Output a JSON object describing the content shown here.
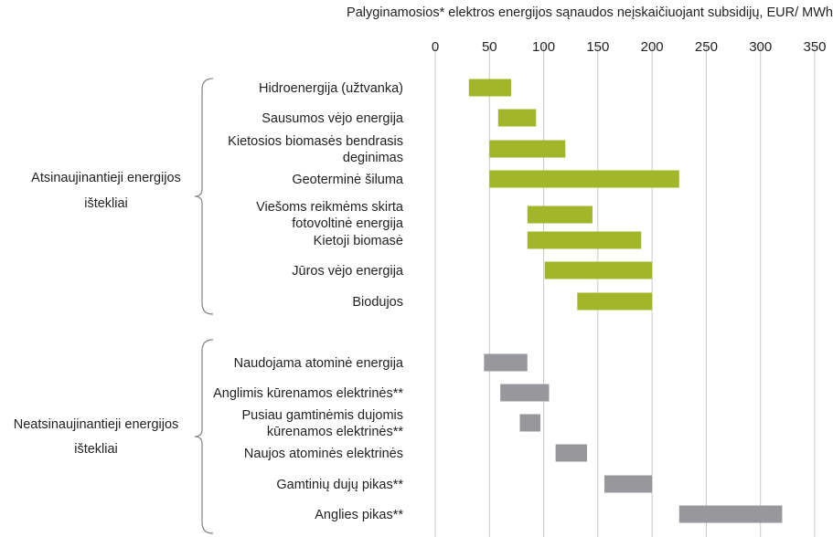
{
  "chart_data": {
    "type": "bar",
    "subtype": "floating-range-horizontal",
    "title": "Palyginamosios* elektros energijos sąnaudos neįskaičiuojant subsidijų, EUR/ MWh",
    "x_axis": {
      "range": [
        0,
        350
      ],
      "ticks": [
        "0",
        "50",
        "100",
        "150",
        "200",
        "250",
        "300",
        "350"
      ],
      "position": "top",
      "grid": true
    },
    "colors": {
      "renewable": "#a2b62a",
      "nonrenewable": "#98989c",
      "grid": "#c8c8c8",
      "bracket": "#8a8a8a"
    },
    "groups": [
      {
        "name": "Atsinaujinantieji energijos ištekliai",
        "name_lines": [
          "Atsinaujinantieji energijos",
          "ištekliai"
        ],
        "color_key": "renewable",
        "categories": [
          {
            "label_lines": [
              "Hidroenergija (užtvanka)"
            ],
            "min": 31,
            "max": 70
          },
          {
            "label_lines": [
              "Sausumos vėjo energija"
            ],
            "min": 58,
            "max": 93
          },
          {
            "label_lines": [
              "Kietosios biomasės bendrasis",
              "deginimas"
            ],
            "min": 50,
            "max": 120
          },
          {
            "label_lines": [
              "Geoterminė šiluma"
            ],
            "min": 50,
            "max": 225
          },
          {
            "label_lines": [
              "Viešoms reikmėms skirta",
              "fotovoltinė energija"
            ],
            "min": 85,
            "max": 145
          },
          {
            "label_lines": [
              "Kietoji biomasė"
            ],
            "min": 85,
            "max": 190
          },
          {
            "label_lines": [
              "Jūros vėjo energija"
            ],
            "min": 101,
            "max": 200
          },
          {
            "label_lines": [
              "Biodujos"
            ],
            "min": 131,
            "max": 200
          }
        ]
      },
      {
        "name": "Neatsinaujinantieji energijos ištekliai",
        "name_lines": [
          "Neatsinaujinantieji energijos",
          "ištekliai"
        ],
        "color_key": "nonrenewable",
        "categories": [
          {
            "label_lines": [
              "Naudojama atominė energija"
            ],
            "min": 45,
            "max": 85
          },
          {
            "label_lines": [
              "Anglimis kūrenamos elektrinės**"
            ],
            "min": 60,
            "max": 105
          },
          {
            "label_lines": [
              "Pusiau gamtinėmis dujomis",
              "kūrenamos elektrinės**"
            ],
            "min": 78,
            "max": 97
          },
          {
            "label_lines": [
              "Naujos atominės elektrinės"
            ],
            "min": 111,
            "max": 140
          },
          {
            "label_lines": [
              "Gamtinių dujų pikas**"
            ],
            "min": 156,
            "max": 200
          },
          {
            "label_lines": [
              "Anglies pikas**"
            ],
            "min": 225,
            "max": 320
          }
        ]
      }
    ]
  }
}
